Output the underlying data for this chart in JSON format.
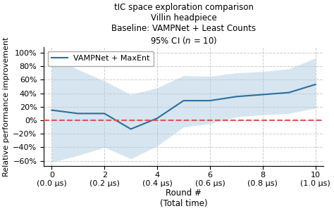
{
  "title_full": "tIC space exploration comparison\nVillin headpiece\nBaseline: VAMPNet + Least Counts\n95% CI ($n$ = 10)",
  "ylabel": "Relative performance improvement",
  "xlabel_line1": "Round #",
  "xlabel_line2": "(Total time)",
  "legend_label": "VAMPNet + MaxEnt",
  "x": [
    0,
    1,
    2,
    3,
    4,
    5,
    6,
    7,
    8,
    9,
    10
  ],
  "y_mean": [
    0.15,
    0.1,
    0.1,
    -0.13,
    0.03,
    0.29,
    0.29,
    0.35,
    0.38,
    0.41,
    0.53
  ],
  "y_upper": [
    0.95,
    0.75,
    0.58,
    0.38,
    0.48,
    0.66,
    0.65,
    0.7,
    0.72,
    0.76,
    0.92
  ],
  "y_lower": [
    -0.62,
    -0.52,
    -0.4,
    -0.57,
    -0.38,
    -0.1,
    -0.05,
    0.05,
    0.08,
    0.1,
    0.18
  ],
  "ylim": [
    -0.68,
    1.08
  ],
  "xlim": [
    -0.3,
    10.3
  ],
  "yticks": [
    -0.6,
    -0.4,
    -0.2,
    0.0,
    0.2,
    0.4,
    0.6,
    0.8,
    1.0
  ],
  "xticks": [
    0,
    2,
    4,
    6,
    8,
    10
  ],
  "xtick_top_labels": [
    "0",
    "2",
    "4",
    "6",
    "8",
    "10"
  ],
  "xtick_bottom_labels": [
    "(0.0 μs)",
    "(0.2 μs)",
    "(0.4 μs)",
    "(0.6 μs)",
    "(0.8 μs)",
    "(1.0 μs)"
  ],
  "line_color": "#2c6e9e",
  "fill_color": "#aecde0",
  "fill_alpha": 0.5,
  "ref_line_color": "#e05555",
  "background_color": "#ffffff",
  "grid_color": "#cccccc",
  "title_fontsize": 8.5,
  "tick_fontsize": 8,
  "ylabel_fontsize": 8,
  "xlabel_fontsize": 8.5
}
